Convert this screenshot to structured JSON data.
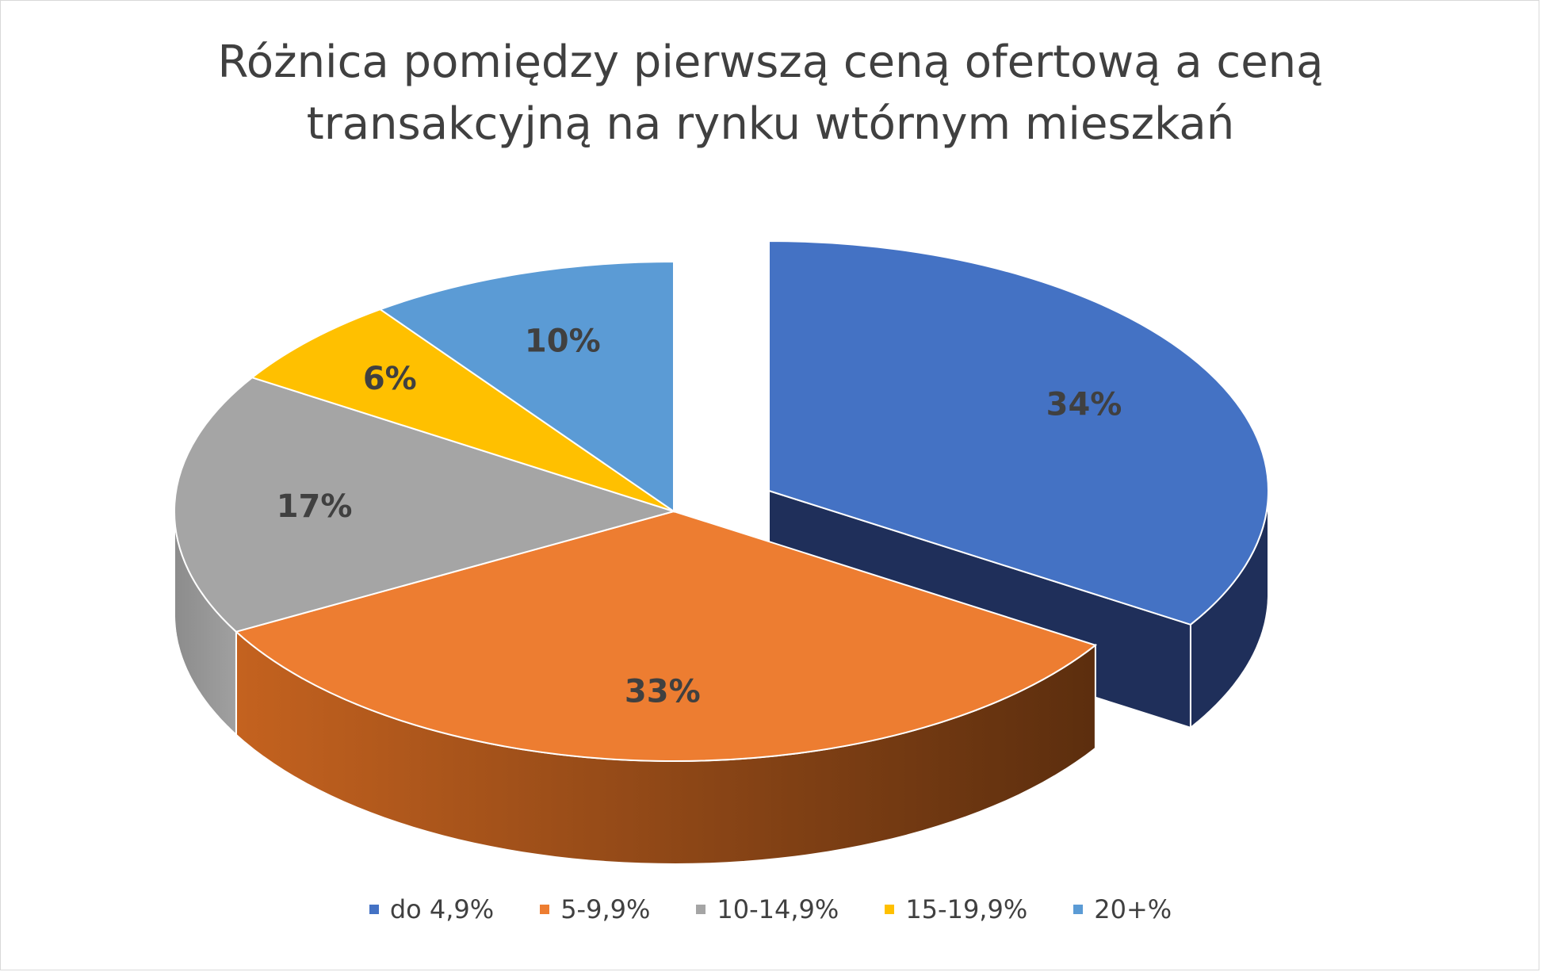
{
  "chart_data": {
    "type": "pie",
    "title": "Różnica pomiędzy pierwszą ceną ofertową a ceną transakcyjną na rynku wtórnym mieszkań",
    "title_lines": [
      "Różnica pomiędzy pierwszą ceną ofertową a ceną",
      "transakcyjną na rynku wtórnym mieszkań"
    ],
    "legend_position": "bottom",
    "slices": [
      {
        "name": "do 4,9%",
        "value": 34,
        "label": "34%",
        "color": "#4472C4",
        "side_color": "#1F2F5A",
        "exploded": true
      },
      {
        "name": "5-9,9%",
        "value": 33,
        "label": "33%",
        "color": "#ED7D31",
        "side_color": "#8A4516",
        "exploded": false
      },
      {
        "name": "10-14,9%",
        "value": 17,
        "label": "17%",
        "color": "#A5A5A5",
        "side_color": "#7F7F7F",
        "exploded": false
      },
      {
        "name": "15-19,9%",
        "value": 6,
        "label": "6%",
        "color": "#FFC000",
        "side_color": "#A67C00",
        "exploded": false
      },
      {
        "name": "20+%",
        "value": 10,
        "label": "10%",
        "color": "#5B9BD5",
        "side_color": "#2F5F8C",
        "exploded": false
      }
    ]
  }
}
